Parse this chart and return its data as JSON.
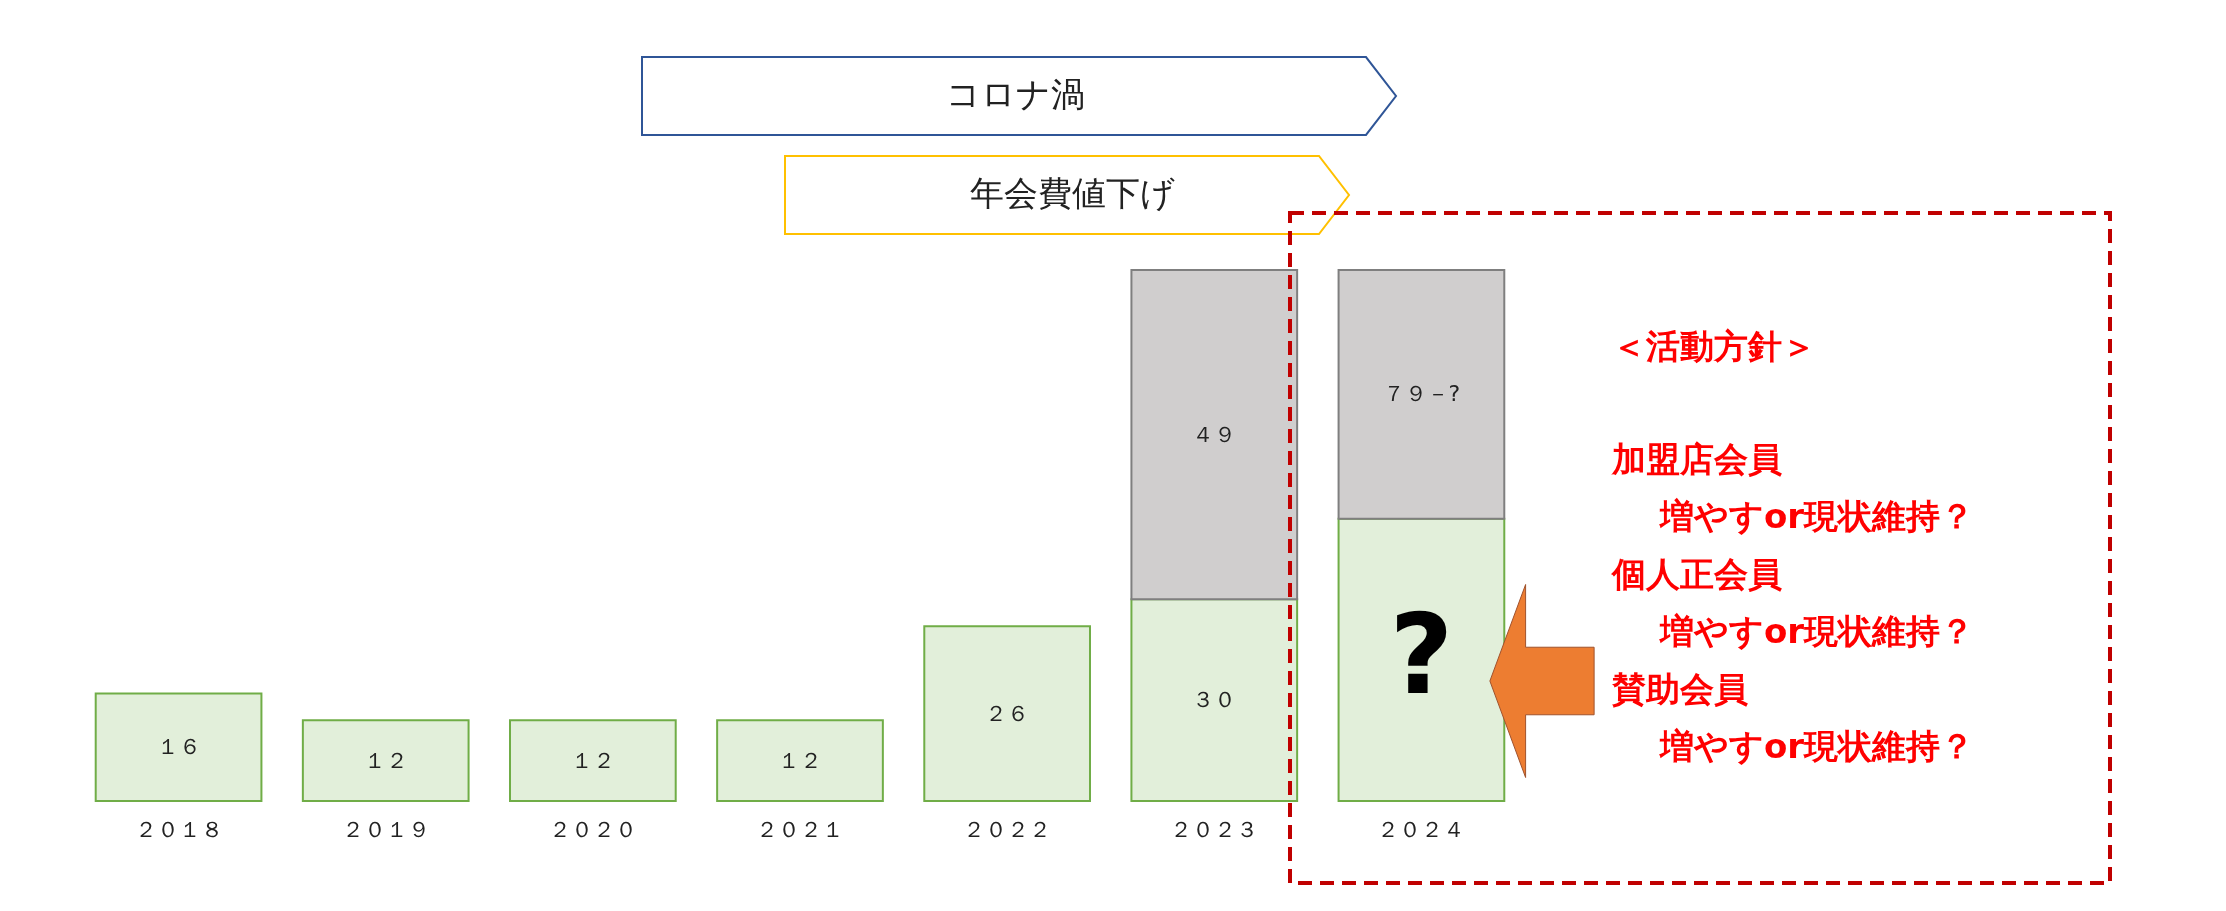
{
  "chart_data": {
    "type": "bar",
    "stacked": true,
    "categories": [
      "２０１８",
      "２０１９",
      "２０２０",
      "２０２１",
      "２０２２",
      "２０２３",
      "２０２４"
    ],
    "series": [
      {
        "color": "#e2efda",
        "values": [
          16,
          12,
          12,
          12,
          26,
          30,
          42
        ],
        "value_labels": [
          "１６",
          "１２",
          "１２",
          "１２",
          "２６",
          "３０",
          "?"
        ]
      },
      {
        "color": "#d0cece",
        "values": [
          null,
          null,
          null,
          null,
          null,
          49,
          37
        ],
        "value_labels": [
          null,
          null,
          null,
          null,
          null,
          "４９",
          null
        ]
      }
    ],
    "annotations": [
      "コロナ渦",
      "年会費値下げ",
      "７９－?",
      "＜活動方針＞",
      "加盟店会員",
      "　増やすor現状維持？",
      "個人正会員",
      "　増やすor現状維持？",
      "賛助会員",
      "　増やすor現状維持？"
    ]
  }
}
